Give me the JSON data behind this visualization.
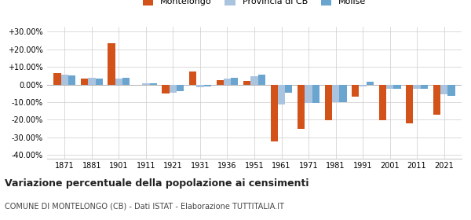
{
  "years": [
    1871,
    1881,
    1901,
    1911,
    1921,
    1931,
    1936,
    1951,
    1961,
    1971,
    1981,
    1991,
    2001,
    2011,
    2021
  ],
  "montelongo": [
    6.5,
    3.5,
    23.5,
    0.0,
    -5.0,
    7.5,
    2.5,
    2.0,
    -32.5,
    -25.0,
    -20.5,
    -7.0,
    -20.5,
    -22.0,
    -17.0
  ],
  "provincia_cb": [
    5.5,
    4.0,
    3.5,
    0.5,
    -4.5,
    -1.5,
    3.5,
    4.5,
    -11.5,
    -10.5,
    -10.0,
    -1.0,
    -2.5,
    -2.5,
    -5.5
  ],
  "molise": [
    5.0,
    3.5,
    4.0,
    0.5,
    -4.0,
    -1.0,
    4.0,
    5.5,
    -4.5,
    -10.5,
    -10.0,
    1.5,
    -2.5,
    -2.5,
    -6.5
  ],
  "color_montelongo": "#d2521a",
  "color_provincia": "#aac4e0",
  "color_molise": "#6aa5d0",
  "title": "Variazione percentuale della popolazione ai censimenti",
  "subtitle": "COMUNE DI MONTELONGO (CB) - Dati ISTAT - Elaborazione TUTTITALIA.IT",
  "ylim": [
    -42,
    33
  ],
  "yticks": [
    -40,
    -30,
    -20,
    -10,
    0,
    10,
    20,
    30
  ],
  "bar_width": 0.27,
  "background_color": "#ffffff",
  "grid_color": "#cccccc"
}
